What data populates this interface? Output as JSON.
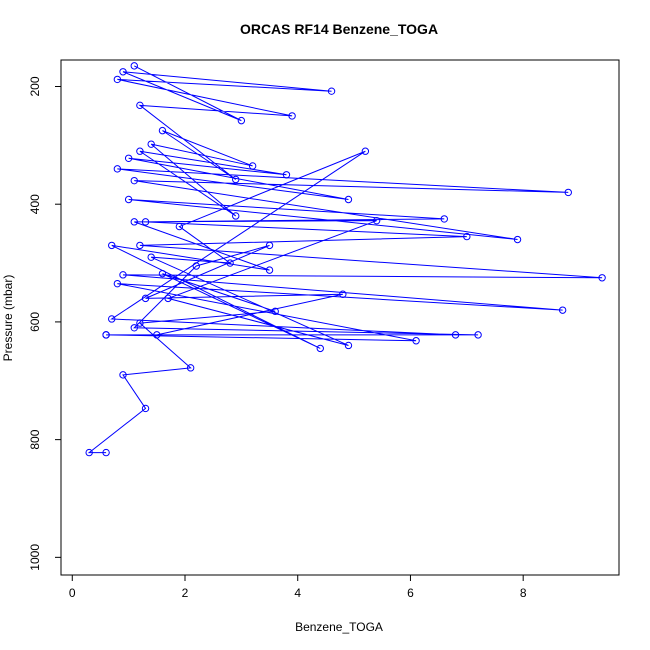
{
  "chart_data": {
    "type": "line",
    "title": "ORCAS RF14 Benzene_TOGA",
    "xlabel": "Benzene_TOGA",
    "ylabel": "Pressure (mbar)",
    "xlim": [
      -0.2,
      9.7
    ],
    "ylim": [
      1030,
      155
    ],
    "y_axis_inverted": true,
    "x_ticks": [
      0,
      2,
      4,
      6,
      8
    ],
    "y_ticks": [
      200,
      400,
      600,
      800,
      1000
    ],
    "grid": false,
    "legend": "none",
    "color": "#0000ff",
    "marker": "open-circle",
    "series": [
      {
        "x": [
          1.1,
          3.0,
          0.9,
          4.6,
          0.8,
          3.9,
          1.2,
          2.9,
          1.6,
          3.2,
          1.4,
          2.9,
          1.2,
          3.8,
          1.0,
          4.9,
          0.8,
          8.8,
          1.1,
          7.9,
          1.0,
          6.6,
          1.3,
          7.0,
          1.2,
          9.4,
          0.9,
          8.7,
          0.8,
          6.1,
          0.6,
          7.2,
          1.1,
          2.2,
          3.5,
          1.3,
          4.8,
          1.5,
          0.6,
          6.8,
          0.7,
          5.2,
          1.9,
          2.8,
          1.4,
          4.9,
          1.7,
          5.4,
          1.1,
          3.5,
          0.7,
          4.4,
          1.6,
          3.6,
          1.2,
          2.1,
          0.9,
          1.3,
          0.3,
          0.6
        ],
        "y": [
          165,
          258,
          175,
          208,
          188,
          250,
          232,
          358,
          275,
          335,
          298,
          420,
          310,
          350,
          322,
          392,
          340,
          380,
          360,
          460,
          392,
          425,
          430,
          455,
          470,
          525,
          520,
          580,
          535,
          632,
          622,
          622,
          610,
          505,
          470,
          560,
          553,
          622,
          622,
          622,
          595,
          310,
          438,
          500,
          490,
          640,
          560,
          428,
          430,
          512,
          470,
          645,
          518,
          582,
          602,
          678,
          690,
          747,
          822,
          822
        ]
      }
    ]
  }
}
